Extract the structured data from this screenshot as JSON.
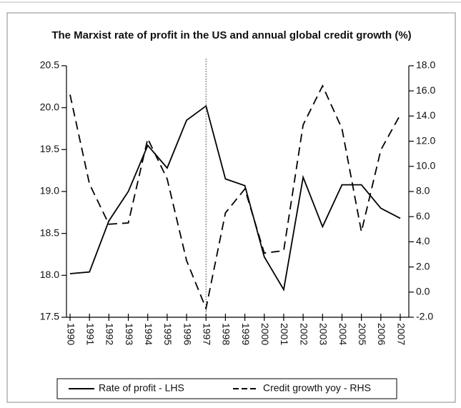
{
  "chart_data": {
    "type": "line",
    "title": "The Marxist rate of profit in the US and annual global credit growth (%)",
    "categories": [
      "1990",
      "1991",
      "1992",
      "1993",
      "1994",
      "1995",
      "1996",
      "1997",
      "1998",
      "1999",
      "2000",
      "2001",
      "2002",
      "2003",
      "2004",
      "2005",
      "2006",
      "2007"
    ],
    "series": [
      {
        "name": "Rate of profit - LHS",
        "color": "#000000",
        "dash": "solid",
        "axis": "y",
        "values": [
          18.02,
          18.04,
          18.65,
          19.0,
          19.55,
          19.28,
          19.85,
          20.02,
          19.15,
          19.07,
          18.22,
          17.83,
          19.17,
          18.58,
          19.08,
          19.08,
          18.8,
          18.68
        ]
      },
      {
        "name": "Credit growth yoy - RHS",
        "color": "#000000",
        "dash": "dashed",
        "axis": "y2",
        "values": [
          15.7,
          8.6,
          5.4,
          5.5,
          12.2,
          9.0,
          2.5,
          -1.3,
          6.3,
          8.2,
          3.1,
          3.3,
          13.3,
          16.4,
          13.0,
          4.8,
          11.3,
          14.1
        ]
      }
    ],
    "ylim": [
      17.5,
      20.5
    ],
    "yticks": [
      17.5,
      {
        "value": 18,
        "label": "18.0"
      },
      18.5,
      {
        "value": 19,
        "label": "19.0"
      },
      19.5,
      {
        "value": 20,
        "label": "20.0"
      },
      20.5
    ],
    "y2lim": [
      -2,
      18
    ],
    "y2ticks": [
      {
        "value": -2,
        "label": "-2.0"
      },
      {
        "value": 0,
        "label": "0.0"
      },
      {
        "value": 2,
        "label": "2.0"
      },
      {
        "value": 4,
        "label": "4.0"
      },
      {
        "value": 6,
        "label": "6.0"
      },
      {
        "value": 8,
        "label": "8.0"
      },
      {
        "value": 10,
        "label": "10.0"
      },
      {
        "value": 12,
        "label": "12.0"
      },
      {
        "value": 14,
        "label": "14.0"
      },
      {
        "value": 16,
        "label": "16.0"
      },
      {
        "value": 18,
        "label": "18.0"
      }
    ],
    "vline_at": "1997",
    "grid": false,
    "legend": "bottom"
  }
}
